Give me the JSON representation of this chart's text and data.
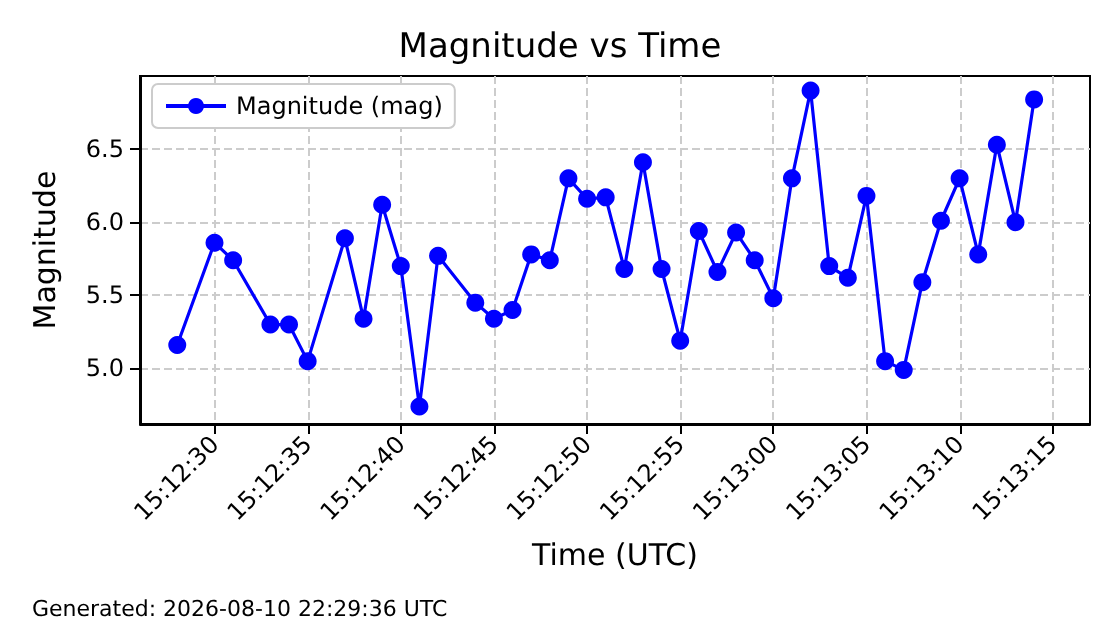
{
  "chart_data": {
    "type": "line",
    "title": "Magnitude vs Time",
    "xlabel": "Time (UTC)",
    "ylabel": "Magnitude",
    "annotations": [
      "Generated: 2026-08-10 22:29:36 UTC"
    ],
    "x": [
      "2026-08-10T15:12:28",
      "2026-08-10T15:12:30",
      "2026-08-10T15:12:31",
      "2026-08-10T15:12:33",
      "2026-08-10T15:12:34",
      "2026-08-10T15:12:35",
      "2026-08-10T15:12:37",
      "2026-08-10T15:12:38",
      "2026-08-10T15:12:39",
      "2026-08-10T15:12:40",
      "2026-08-10T15:12:41",
      "2026-08-10T15:12:42",
      "2026-08-10T15:12:44",
      "2026-08-10T15:12:45",
      "2026-08-10T15:12:46",
      "2026-08-10T15:12:47",
      "2026-08-10T15:12:48",
      "2026-08-10T15:12:49",
      "2026-08-10T15:12:50",
      "2026-08-10T15:12:51",
      "2026-08-10T15:12:52",
      "2026-08-10T15:12:53",
      "2026-08-10T15:12:54",
      "2026-08-10T15:12:55",
      "2026-08-10T15:12:56",
      "2026-08-10T15:12:57",
      "2026-08-10T15:12:58",
      "2026-08-10T15:12:59",
      "2026-08-10T15:13:00",
      "2026-08-10T15:13:01",
      "2026-08-10T15:13:02",
      "2026-08-10T15:13:03",
      "2026-08-10T15:13:04",
      "2026-08-10T15:13:05",
      "2026-08-10T15:13:06",
      "2026-08-10T15:13:07",
      "2026-08-10T15:13:08",
      "2026-08-10T15:13:09",
      "2026-08-10T15:13:10",
      "2026-08-10T15:13:11",
      "2026-08-10T15:13:12",
      "2026-08-10T15:13:13",
      "2026-08-10T15:13:14"
    ],
    "series": [
      {
        "name": "Magnitude (mag)",
        "color": "#0000ff",
        "values": [
          5.16,
          5.86,
          5.74,
          5.3,
          5.3,
          5.05,
          5.89,
          5.34,
          6.12,
          5.7,
          4.74,
          5.77,
          5.45,
          5.34,
          5.4,
          5.78,
          5.74,
          6.3,
          6.16,
          6.17,
          5.68,
          6.41,
          5.68,
          5.19,
          5.94,
          5.66,
          5.93,
          5.74,
          5.48,
          6.3,
          6.9,
          5.7,
          5.62,
          6.18,
          5.05,
          4.99,
          5.59,
          6.01,
          6.3,
          5.78,
          6.53,
          6.0,
          6.84
        ]
      }
    ],
    "xlim": [
      "2026-08-10T15:12:26",
      "2026-08-10T15:13:17"
    ],
    "xticks": [
      {
        "value": "2026-08-10T15:12:30",
        "label": "15:12:30"
      },
      {
        "value": "2026-08-10T15:12:35",
        "label": "15:12:35"
      },
      {
        "value": "2026-08-10T15:12:40",
        "label": "15:12:40"
      },
      {
        "value": "2026-08-10T15:12:45",
        "label": "15:12:45"
      },
      {
        "value": "2026-08-10T15:12:50",
        "label": "15:12:50"
      },
      {
        "value": "2026-08-10T15:12:55",
        "label": "15:12:55"
      },
      {
        "value": "2026-08-10T15:13:00",
        "label": "15:13:00"
      },
      {
        "value": "2026-08-10T15:13:05",
        "label": "15:13:05"
      },
      {
        "value": "2026-08-10T15:13:10",
        "label": "15:13:10"
      },
      {
        "value": "2026-08-10T15:13:15",
        "label": "15:13:15"
      }
    ],
    "ylim": [
      4.62,
      7.0
    ],
    "yticks": [
      {
        "value": 5,
        "label": "5.0"
      },
      {
        "value": 5.5,
        "label": "5.5"
      },
      {
        "value": 6,
        "label": "6.0"
      },
      {
        "value": 6.5,
        "label": "6.5"
      }
    ],
    "grid": true,
    "legend": "top left",
    "marker": "circle",
    "line_style": "solid"
  }
}
